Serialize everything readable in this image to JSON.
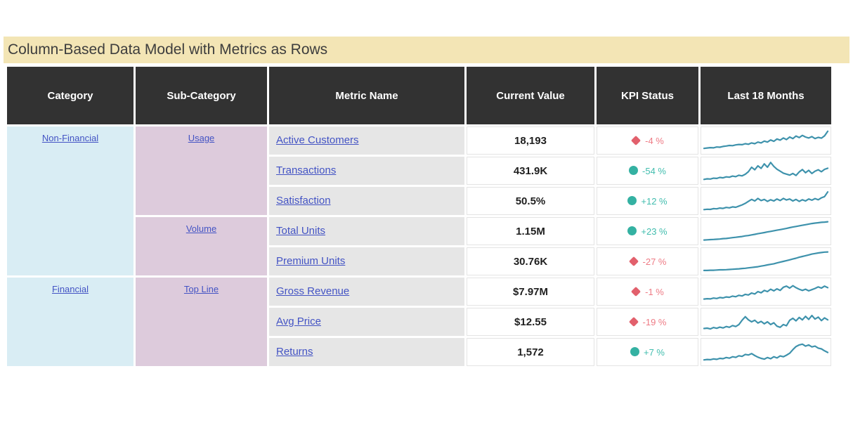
{
  "title": "Column-Based Data Model with Metrics as Rows",
  "colors": {
    "title_bg": "#f3e5b5",
    "title_text": "#3d3d3d",
    "header_bg": "#323232",
    "header_text": "#ffffff",
    "category_bg": "#d9edf4",
    "subcategory_bg": "#ddcbdc",
    "metric_bg": "#e6e6e6",
    "link": "#4353c4",
    "value_text": "#1f1f1f",
    "kpi_bad_icon": "#e2606c",
    "kpi_bad_text": "#ee7b85",
    "kpi_good_icon": "#34b1a2",
    "kpi_good_text": "#41bdae",
    "sparkline": "#3e92ac",
    "cell_border": "#e4e4e4"
  },
  "chart_data": {
    "type": "table",
    "columns": [
      "Category",
      "Sub-Category",
      "Metric Name",
      "Current Value",
      "KPI Status",
      "Last 18 Months"
    ],
    "category_groups": [
      {
        "label": "Non-Financial",
        "rowspan": 5
      },
      {
        "label": "Financial",
        "rowspan": 3
      }
    ],
    "subcategory_groups": [
      {
        "label": "Usage",
        "rowspan": 3
      },
      {
        "label": "Volume",
        "rowspan": 2
      },
      {
        "label": "Top Line",
        "rowspan": 3
      }
    ],
    "rows": [
      {
        "category": "Non-Financial",
        "subcategory": "Usage",
        "metric": "Active Customers",
        "value": "18,193",
        "kpi": {
          "shape": "diamond",
          "status": "bad",
          "delta": "-4 %"
        },
        "sparkline": [
          0.1,
          0.12,
          0.14,
          0.13,
          0.17,
          0.16,
          0.2,
          0.22,
          0.25,
          0.24,
          0.28,
          0.3,
          0.29,
          0.34,
          0.31,
          0.38,
          0.34,
          0.42,
          0.38,
          0.47,
          0.42,
          0.53,
          0.46,
          0.58,
          0.52,
          0.63,
          0.55,
          0.68,
          0.6,
          0.73,
          0.65,
          0.76,
          0.68,
          0.63,
          0.7,
          0.6,
          0.66,
          0.62,
          0.74,
          0.97
        ]
      },
      {
        "metric": "Transactions",
        "value": "431.9K",
        "kpi": {
          "shape": "circle",
          "status": "good",
          "delta": "-54 %"
        },
        "sparkline": [
          0.06,
          0.09,
          0.08,
          0.12,
          0.11,
          0.16,
          0.14,
          0.19,
          0.17,
          0.23,
          0.2,
          0.27,
          0.24,
          0.32,
          0.45,
          0.68,
          0.55,
          0.75,
          0.62,
          0.85,
          0.68,
          0.92,
          0.72,
          0.58,
          0.48,
          0.38,
          0.33,
          0.28,
          0.36,
          0.26,
          0.44,
          0.56,
          0.4,
          0.52,
          0.36,
          0.48,
          0.55,
          0.45,
          0.57,
          0.63
        ]
      },
      {
        "metric": "Satisfaction",
        "value": "50.5%",
        "kpi": {
          "shape": "circle",
          "status": "good",
          "delta": "+12 %"
        },
        "sparkline": [
          0.06,
          0.08,
          0.07,
          0.11,
          0.1,
          0.14,
          0.12,
          0.17,
          0.15,
          0.2,
          0.18,
          0.24,
          0.3,
          0.38,
          0.48,
          0.58,
          0.5,
          0.63,
          0.52,
          0.58,
          0.48,
          0.56,
          0.5,
          0.6,
          0.52,
          0.63,
          0.55,
          0.6,
          0.5,
          0.58,
          0.48,
          0.56,
          0.5,
          0.6,
          0.54,
          0.62,
          0.56,
          0.66,
          0.72,
          0.96
        ]
      },
      {
        "subcategory": "Volume",
        "metric": "Total Units",
        "value": "1.15M",
        "kpi": {
          "shape": "circle",
          "status": "good",
          "delta": "+23 %"
        },
        "sparkline": [
          0.05,
          0.06,
          0.07,
          0.08,
          0.09,
          0.1,
          0.12,
          0.13,
          0.15,
          0.17,
          0.19,
          0.21,
          0.23,
          0.26,
          0.28,
          0.31,
          0.34,
          0.37,
          0.4,
          0.43,
          0.46,
          0.49,
          0.52,
          0.55,
          0.58,
          0.61,
          0.64,
          0.68,
          0.71,
          0.74,
          0.77,
          0.8,
          0.83,
          0.86,
          0.89,
          0.91,
          0.93,
          0.95,
          0.96,
          0.98
        ]
      },
      {
        "metric": "Premium Units",
        "value": "30.76K",
        "kpi": {
          "shape": "diamond",
          "status": "bad",
          "delta": "-27 %"
        },
        "sparkline": [
          0.04,
          0.04,
          0.05,
          0.05,
          0.06,
          0.07,
          0.07,
          0.08,
          0.09,
          0.1,
          0.11,
          0.12,
          0.14,
          0.15,
          0.17,
          0.19,
          0.21,
          0.23,
          0.26,
          0.29,
          0.32,
          0.35,
          0.38,
          0.42,
          0.46,
          0.5,
          0.54,
          0.58,
          0.62,
          0.66,
          0.71,
          0.75,
          0.79,
          0.83,
          0.87,
          0.9,
          0.93,
          0.95,
          0.97,
          0.98
        ]
      },
      {
        "category": "Financial",
        "subcategory": "Top Line",
        "metric": "Gross Revenue",
        "value": "$7.97M",
        "kpi": {
          "shape": "diamond",
          "status": "bad",
          "delta": "-1 %"
        },
        "sparkline": [
          0.12,
          0.14,
          0.13,
          0.17,
          0.15,
          0.2,
          0.18,
          0.23,
          0.21,
          0.27,
          0.24,
          0.31,
          0.28,
          0.36,
          0.33,
          0.43,
          0.38,
          0.5,
          0.44,
          0.56,
          0.5,
          0.62,
          0.54,
          0.64,
          0.56,
          0.72,
          0.78,
          0.68,
          0.8,
          0.7,
          0.62,
          0.56,
          0.62,
          0.54,
          0.6,
          0.66,
          0.74,
          0.68,
          0.78,
          0.7
        ]
      },
      {
        "metric": "Avg Price",
        "value": "$12.55",
        "kpi": {
          "shape": "diamond",
          "status": "bad",
          "delta": "-19 %"
        },
        "sparkline": [
          0.16,
          0.18,
          0.14,
          0.21,
          0.17,
          0.23,
          0.19,
          0.26,
          0.22,
          0.31,
          0.26,
          0.36,
          0.58,
          0.76,
          0.6,
          0.5,
          0.58,
          0.44,
          0.52,
          0.4,
          0.5,
          0.36,
          0.45,
          0.28,
          0.22,
          0.36,
          0.3,
          0.58,
          0.68,
          0.55,
          0.72,
          0.6,
          0.78,
          0.62,
          0.82,
          0.64,
          0.74,
          0.56,
          0.7,
          0.6
        ]
      },
      {
        "metric": "Returns",
        "value": "1,572",
        "kpi": {
          "shape": "circle",
          "status": "good",
          "delta": "+7 %"
        },
        "sparkline": [
          0.1,
          0.12,
          0.11,
          0.15,
          0.13,
          0.18,
          0.16,
          0.22,
          0.19,
          0.26,
          0.23,
          0.31,
          0.28,
          0.38,
          0.35,
          0.42,
          0.32,
          0.24,
          0.18,
          0.14,
          0.22,
          0.16,
          0.26,
          0.2,
          0.3,
          0.26,
          0.34,
          0.44,
          0.62,
          0.78,
          0.86,
          0.9,
          0.8,
          0.86,
          0.76,
          0.8,
          0.7,
          0.66,
          0.56,
          0.48
        ]
      }
    ]
  }
}
